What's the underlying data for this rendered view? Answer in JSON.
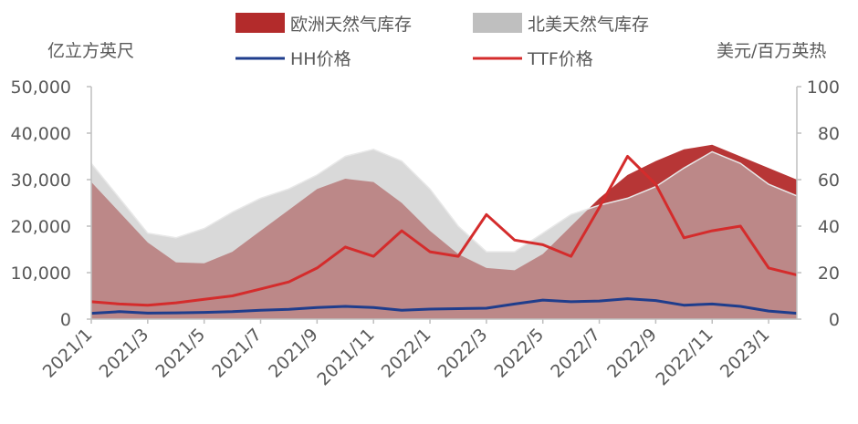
{
  "chart_data": {
    "type": "area",
    "left_axis_unit": "亿立方英尺",
    "right_axis_unit": "美元/百万英热",
    "x_tick_labels": [
      "2021/1",
      "2021/3",
      "2021/5",
      "2021/7",
      "2021/9",
      "2021/11",
      "2022/1",
      "2022/3",
      "2022/5",
      "2022/7",
      "2022/9",
      "2022/11",
      "2023/1"
    ],
    "left_ylim": [
      0,
      50000
    ],
    "left_ticks": [
      "0",
      "10,000",
      "20,000",
      "30,000",
      "40,000",
      "50,000"
    ],
    "right_ylim": [
      0,
      100
    ],
    "right_ticks": [
      "0",
      "20",
      "40",
      "60",
      "80",
      "100"
    ],
    "grid": false,
    "legend_position": "top",
    "colors": {
      "eu_storage": "#b32b2b",
      "na_storage": "#bfbfbf",
      "hh": "#1f3d8c",
      "ttf": "#d42c2c",
      "axis": "#bfbfbf",
      "text": "#595959"
    },
    "series": [
      {
        "name": "欧洲天然气库存",
        "kind": "area",
        "axis": "left",
        "points": [
          [
            "2021/1",
            29500
          ],
          [
            "2021/2",
            23000
          ],
          [
            "2021/3",
            16500
          ],
          [
            "2021/4",
            12200
          ],
          [
            "2021/5",
            12000
          ],
          [
            "2021/6",
            14500
          ],
          [
            "2021/7",
            19000
          ],
          [
            "2021/8",
            23500
          ],
          [
            "2021/9",
            28000
          ],
          [
            "2021/10",
            30200
          ],
          [
            "2021/11",
            29500
          ],
          [
            "2021/12",
            25000
          ],
          [
            "2022/1",
            19000
          ],
          [
            "2022/2",
            14000
          ],
          [
            "2022/3",
            11000
          ],
          [
            "2022/4",
            10500
          ],
          [
            "2022/5",
            14000
          ],
          [
            "2022/6",
            20000
          ],
          [
            "2022/7",
            26000
          ],
          [
            "2022/8",
            31000
          ],
          [
            "2022/9",
            34000
          ],
          [
            "2022/10",
            36500
          ],
          [
            "2022/11",
            37500
          ],
          [
            "2022/12",
            35000
          ],
          [
            "2023/1",
            32500
          ],
          [
            "2023/2",
            30000
          ]
        ]
      },
      {
        "name": "北美天然气库存",
        "kind": "area",
        "axis": "left",
        "points": [
          [
            "2021/1",
            33500
          ],
          [
            "2021/2",
            26000
          ],
          [
            "2021/3",
            18500
          ],
          [
            "2021/4",
            17500
          ],
          [
            "2021/5",
            19500
          ],
          [
            "2021/6",
            23000
          ],
          [
            "2021/7",
            26000
          ],
          [
            "2021/8",
            28000
          ],
          [
            "2021/9",
            31000
          ],
          [
            "2021/10",
            35000
          ],
          [
            "2021/11",
            36500
          ],
          [
            "2021/12",
            34000
          ],
          [
            "2022/1",
            28000
          ],
          [
            "2022/2",
            20000
          ],
          [
            "2022/3",
            14500
          ],
          [
            "2022/4",
            14500
          ],
          [
            "2022/5",
            18500
          ],
          [
            "2022/6",
            22500
          ],
          [
            "2022/7",
            24500
          ],
          [
            "2022/8",
            26000
          ],
          [
            "2022/9",
            28500
          ],
          [
            "2022/10",
            32500
          ],
          [
            "2022/11",
            36000
          ],
          [
            "2022/12",
            33500
          ],
          [
            "2023/1",
            29000
          ],
          [
            "2023/2",
            26500
          ]
        ]
      },
      {
        "name": "HH价格",
        "kind": "line",
        "axis": "right",
        "points": [
          [
            "2021/1",
            2.5
          ],
          [
            "2021/2",
            3.2
          ],
          [
            "2021/3",
            2.6
          ],
          [
            "2021/4",
            2.7
          ],
          [
            "2021/5",
            2.9
          ],
          [
            "2021/6",
            3.2
          ],
          [
            "2021/7",
            3.8
          ],
          [
            "2021/8",
            4.2
          ],
          [
            "2021/9",
            5.0
          ],
          [
            "2021/10",
            5.5
          ],
          [
            "2021/11",
            5.0
          ],
          [
            "2021/12",
            3.8
          ],
          [
            "2022/1",
            4.3
          ],
          [
            "2022/2",
            4.5
          ],
          [
            "2022/3",
            4.7
          ],
          [
            "2022/4",
            6.5
          ],
          [
            "2022/5",
            8.2
          ],
          [
            "2022/6",
            7.5
          ],
          [
            "2022/7",
            7.8
          ],
          [
            "2022/8",
            8.8
          ],
          [
            "2022/9",
            8.0
          ],
          [
            "2022/10",
            6.0
          ],
          [
            "2022/11",
            6.5
          ],
          [
            "2022/12",
            5.5
          ],
          [
            "2023/1",
            3.5
          ],
          [
            "2023/2",
            2.5
          ]
        ]
      },
      {
        "name": "TTF价格",
        "kind": "line",
        "axis": "right",
        "points": [
          [
            "2021/1",
            7.5
          ],
          [
            "2021/2",
            6.5
          ],
          [
            "2021/3",
            6.0
          ],
          [
            "2021/4",
            7.0
          ],
          [
            "2021/5",
            8.5
          ],
          [
            "2021/6",
            10.0
          ],
          [
            "2021/7",
            13.0
          ],
          [
            "2021/8",
            16.0
          ],
          [
            "2021/9",
            22.0
          ],
          [
            "2021/10",
            31.0
          ],
          [
            "2021/11",
            27.0
          ],
          [
            "2021/12",
            38.0
          ],
          [
            "2022/1",
            29.0
          ],
          [
            "2022/2",
            27.0
          ],
          [
            "2022/3",
            45.0
          ],
          [
            "2022/4",
            34.0
          ],
          [
            "2022/5",
            32.0
          ],
          [
            "2022/6",
            27.0
          ],
          [
            "2022/7",
            48.0
          ],
          [
            "2022/8",
            70.0
          ],
          [
            "2022/9",
            58.0
          ],
          [
            "2022/10",
            35.0
          ],
          [
            "2022/11",
            38.0
          ],
          [
            "2022/12",
            40.0
          ],
          [
            "2023/1",
            22.0
          ],
          [
            "2023/2",
            19.0
          ]
        ]
      }
    ]
  }
}
